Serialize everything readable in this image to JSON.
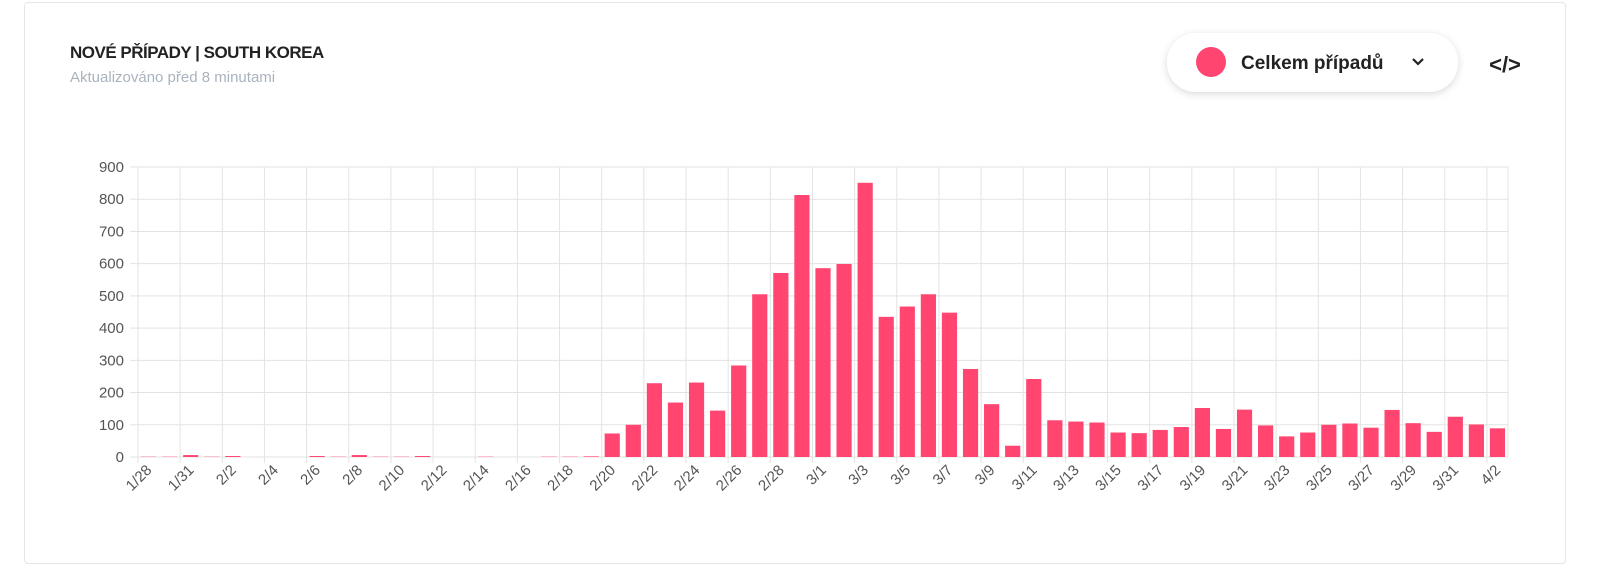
{
  "header": {
    "title": "NOVÉ PŘÍPADY | SOUTH KOREA",
    "subtitle": "Aktualizováno před 8 minutami",
    "dropdown": "Celkem případů",
    "code_icon": "</>"
  },
  "chart_data": {
    "type": "bar",
    "color": "#ff4570",
    "grid": true,
    "categories": [
      "1/28",
      null,
      "1/31",
      null,
      "2/2",
      null,
      "2/4",
      null,
      "2/6",
      null,
      "2/8",
      null,
      "2/10",
      null,
      "2/12",
      null,
      "2/14",
      null,
      "2/16",
      null,
      "2/18",
      null,
      "2/20",
      null,
      "2/22",
      null,
      "2/24",
      null,
      "2/26",
      null,
      "2/28",
      null,
      "3/1",
      null,
      "3/3",
      null,
      "3/5",
      null,
      "3/7",
      null,
      "3/9",
      null,
      "3/11",
      null,
      "3/13",
      null,
      "3/15",
      null,
      "3/17",
      null,
      "3/19",
      null,
      "3/21",
      null,
      "3/23",
      null,
      "3/25",
      null,
      "3/27",
      null,
      "3/29",
      null,
      "3/31",
      null,
      "4/2"
    ],
    "values": [
      1,
      1,
      6,
      1,
      3,
      0,
      0,
      0,
      3,
      1,
      6,
      1,
      1,
      3,
      0,
      0,
      1,
      0,
      0,
      1,
      1,
      2,
      73,
      100,
      229,
      169,
      231,
      144,
      284,
      505,
      571,
      813,
      586,
      599,
      851,
      435,
      467,
      505,
      448,
      273,
      164,
      35,
      242,
      114,
      110,
      107,
      76,
      74,
      84,
      93,
      152,
      87,
      147,
      98,
      64,
      76,
      100,
      104,
      91,
      146,
      105,
      78,
      125,
      101,
      89
    ],
    "ylim": [
      0,
      900
    ],
    "yticks": [
      0,
      100,
      200,
      300,
      400,
      500,
      600,
      700,
      800,
      900
    ]
  }
}
